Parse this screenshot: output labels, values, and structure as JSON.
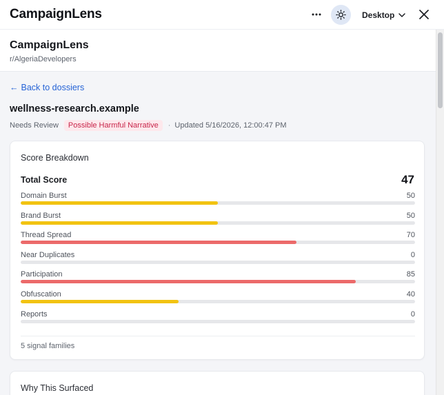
{
  "window": {
    "title": "CampaignLens",
    "device_label": "Desktop",
    "icons": {
      "more": "more-horizontal-icon",
      "theme": "sun-icon",
      "device": "chevron-down-icon",
      "close": "close-icon"
    }
  },
  "header": {
    "app_name": "CampaignLens",
    "subreddit": "r/AlgeriaDevelopers"
  },
  "back_link": {
    "arrow": "←",
    "label": "Back to dossiers"
  },
  "dossier": {
    "domain": "wellness-research.example",
    "status": "Needs Review",
    "badge": "Possible Harmful Narrative",
    "separator": "·",
    "updated": "Updated 5/16/2026, 12:00:47 PM"
  },
  "score_breakdown": {
    "title": "Score Breakdown",
    "total_label": "Total Score",
    "total_value": "47",
    "max": 100,
    "metrics": [
      {
        "label": "Domain Burst",
        "value": 50,
        "color": "#f2c311"
      },
      {
        "label": "Brand Burst",
        "value": 50,
        "color": "#f2c311"
      },
      {
        "label": "Thread Spread",
        "value": 70,
        "color": "#ec6a6a"
      },
      {
        "label": "Near Duplicates",
        "value": 0,
        "color": "#f2c311"
      },
      {
        "label": "Participation",
        "value": 85,
        "color": "#ec6a6a"
      },
      {
        "label": "Obfuscation",
        "value": 40,
        "color": "#f2c311"
      },
      {
        "label": "Reports",
        "value": 0,
        "color": "#f2c311"
      }
    ],
    "footer": "5 signal families"
  },
  "why_section": {
    "title": "Why This Surfaced"
  },
  "colors": {
    "accent": "#2563d6",
    "badge_bg": "#fde8ec",
    "badge_text": "#c8254a"
  }
}
